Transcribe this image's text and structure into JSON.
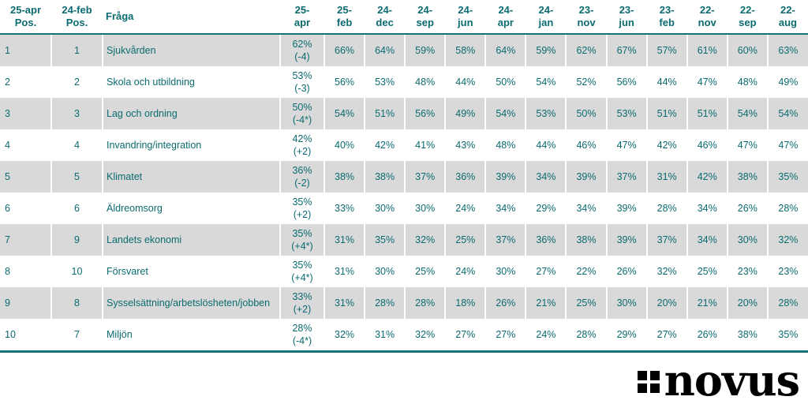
{
  "logo": {
    "text": "novus",
    "mark": "four-squares-icon"
  },
  "colors": {
    "text_teal": "#0b6b70",
    "border_teal": "#15737a",
    "row_stripe_gray": "#d9d9d9",
    "separator_white": "#ffffff",
    "logo_black": "#000000"
  },
  "chart_data": {
    "type": "table",
    "title": "",
    "columns": [
      "25-apr\nPos.",
      "24-feb\nPos.",
      "Fråga",
      "25-\napr",
      "25-\nfeb",
      "24-\ndec",
      "24-\nsep",
      "24-\njun",
      "24-\napr",
      "24-\njan",
      "23-\nnov",
      "23-\njun",
      "23-\nfeb",
      "22-\nnov",
      "22-\nsep",
      "22-\naug"
    ],
    "rows": [
      {
        "pos_current": "1",
        "pos_previous": "1",
        "question": "Sjukvården",
        "current": "62%\n(-4)",
        "values": [
          "66%",
          "64%",
          "59%",
          "58%",
          "64%",
          "59%",
          "62%",
          "67%",
          "57%",
          "61%",
          "60%",
          "63%"
        ]
      },
      {
        "pos_current": "2",
        "pos_previous": "2",
        "question": "Skola och utbildning",
        "current": "53%\n(-3)",
        "values": [
          "56%",
          "53%",
          "48%",
          "44%",
          "50%",
          "54%",
          "52%",
          "56%",
          "44%",
          "47%",
          "48%",
          "49%"
        ]
      },
      {
        "pos_current": "3",
        "pos_previous": "3",
        "question": "Lag och ordning",
        "current": "50%\n(-4*)",
        "values": [
          "54%",
          "51%",
          "56%",
          "49%",
          "54%",
          "53%",
          "50%",
          "53%",
          "51%",
          "51%",
          "54%",
          "54%"
        ]
      },
      {
        "pos_current": "4",
        "pos_previous": "4",
        "question": "Invandring/integration",
        "current": "42%\n(+2)",
        "values": [
          "40%",
          "42%",
          "41%",
          "43%",
          "48%",
          "44%",
          "46%",
          "47%",
          "42%",
          "46%",
          "47%",
          "47%"
        ]
      },
      {
        "pos_current": "5",
        "pos_previous": "5",
        "question": "Klimatet",
        "current": "36%\n(-2)",
        "values": [
          "38%",
          "38%",
          "37%",
          "36%",
          "39%",
          "34%",
          "39%",
          "37%",
          "31%",
          "42%",
          "38%",
          "35%"
        ]
      },
      {
        "pos_current": "6",
        "pos_previous": "6",
        "question": "Äldreomsorg",
        "current": "35%\n(+2)",
        "values": [
          "33%",
          "30%",
          "30%",
          "24%",
          "34%",
          "29%",
          "34%",
          "39%",
          "28%",
          "34%",
          "26%",
          "28%"
        ]
      },
      {
        "pos_current": "7",
        "pos_previous": "9",
        "question": "Landets ekonomi",
        "current": "35%\n(+4*)",
        "values": [
          "31%",
          "35%",
          "32%",
          "25%",
          "37%",
          "36%",
          "38%",
          "39%",
          "37%",
          "34%",
          "30%",
          "32%"
        ]
      },
      {
        "pos_current": "8",
        "pos_previous": "10",
        "question": "Försvaret",
        "current": "35%\n(+4*)",
        "values": [
          "31%",
          "30%",
          "25%",
          "24%",
          "30%",
          "27%",
          "22%",
          "26%",
          "32%",
          "25%",
          "23%",
          "23%"
        ]
      },
      {
        "pos_current": "9",
        "pos_previous": "8",
        "question": "Sysselsättning/arbetslösheten/jobben",
        "current": "33%\n(+2)",
        "values": [
          "31%",
          "28%",
          "28%",
          "18%",
          "26%",
          "21%",
          "25%",
          "30%",
          "20%",
          "21%",
          "20%",
          "28%"
        ]
      },
      {
        "pos_current": "10",
        "pos_previous": "7",
        "question": "Miljön",
        "current": "28%\n(-4*)",
        "values": [
          "32%",
          "31%",
          "32%",
          "27%",
          "27%",
          "24%",
          "28%",
          "29%",
          "27%",
          "26%",
          "38%",
          "35%"
        ]
      }
    ]
  }
}
